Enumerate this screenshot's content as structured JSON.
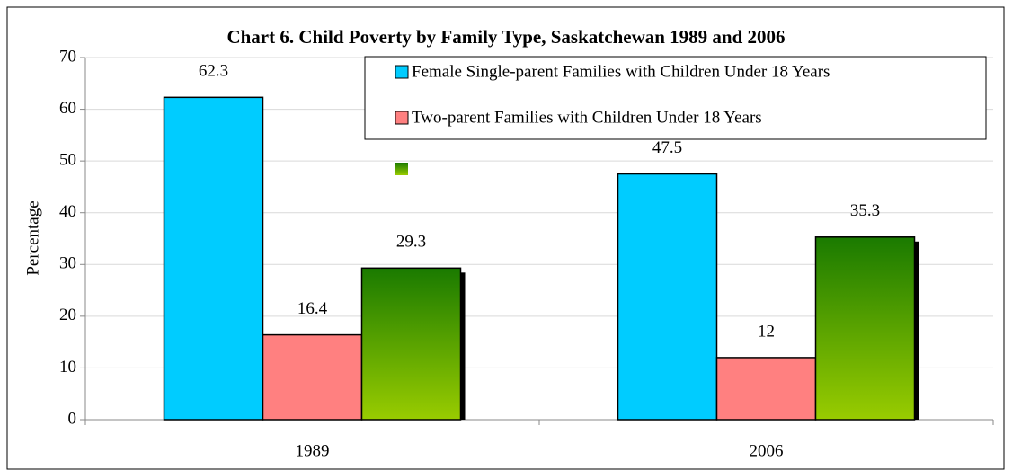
{
  "chart_data": {
    "type": "bar",
    "title": "Chart 6. Child Poverty by Family Type, Saskatchewan 1989 and 2006",
    "y_label": "Percentage",
    "categories": [
      "1989",
      "2006"
    ],
    "series": [
      {
        "name": "Female Single-parent Families with Children Under 18 Years",
        "color": "#00ccff",
        "values": [
          62.3,
          47.5
        ]
      },
      {
        "name": "Two-parent Families with Children Under 18 Years",
        "color": "#ff8080",
        "values": [
          16.4,
          12
        ]
      },
      {
        "color": [
          "#1a7a00",
          "#99cc00"
        ],
        "values": [
          29.3,
          35.3
        ]
      }
    ],
    "ylim": [
      0,
      70
    ],
    "yticks": [
      0,
      10,
      20,
      30,
      40,
      50,
      60,
      70
    ],
    "grid": true
  }
}
